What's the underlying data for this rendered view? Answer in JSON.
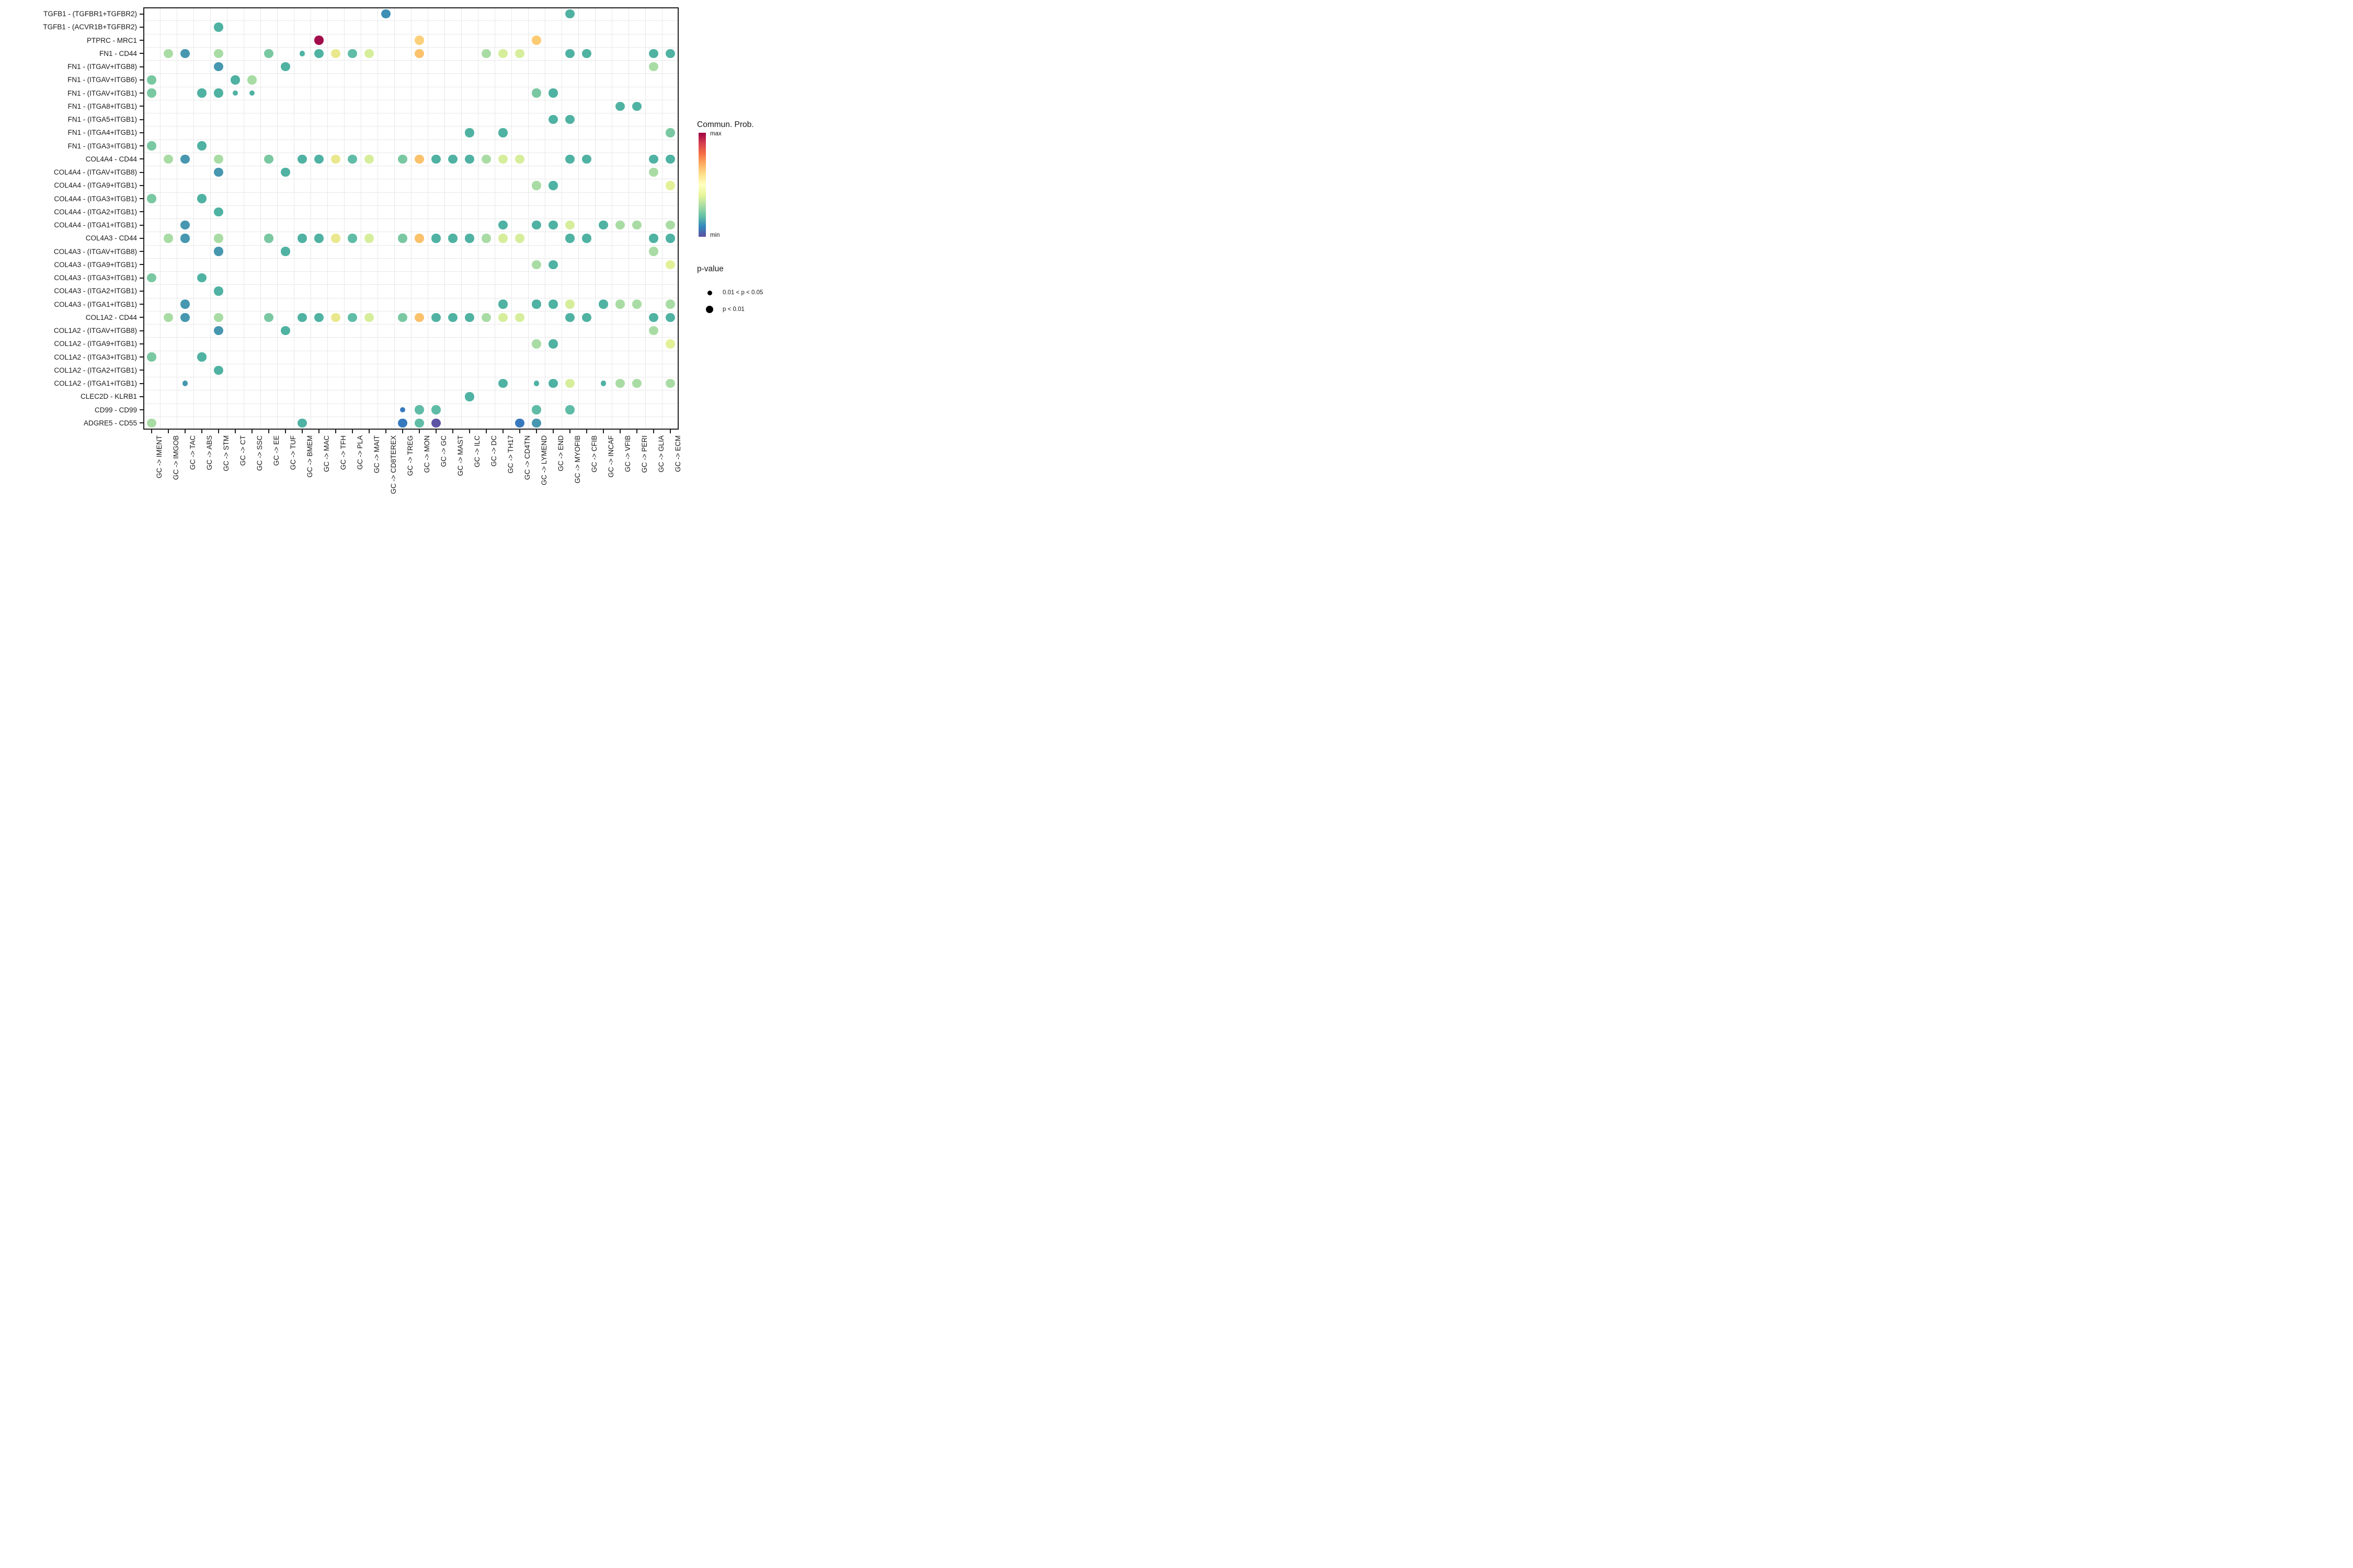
{
  "chart_data": {
    "type": "dotplot",
    "title": "",
    "x_categories": [
      "GC -> IMENT",
      "GC -> IMGOB",
      "GC -> TAC",
      "GC -> ABS",
      "GC -> STM",
      "GC -> CT",
      "GC -> SSC",
      "GC -> EE",
      "GC -> TUF",
      "GC -> BMEM",
      "GC -> MAC",
      "GC -> TFH",
      "GC -> PLA",
      "GC -> MAIT",
      "GC -> CD8TEREX",
      "GC -> TREG",
      "GC -> MON",
      "GC -> GC",
      "GC -> MAST",
      "GC -> ILC",
      "GC -> DC",
      "GC -> TH17",
      "GC -> CD4TN",
      "GC -> LYMEND",
      "GC -> END",
      "GC -> MYOFIB",
      "GC -> CFIB",
      "GC -> INCAF",
      "GC -> VFIB",
      "GC -> PERI",
      "GC -> GLIA",
      "GC -> ECM"
    ],
    "y_categories": [
      "TGFB1 - (TGFBR1+TGFBR2)",
      "TGFB1 - (ACVR1B+TGFBR2)",
      "PTPRC - MRC1",
      "FN1 - CD44",
      "FN1 - (ITGAV+ITGB8)",
      "FN1 - (ITGAV+ITGB6)",
      "FN1 - (ITGAV+ITGB1)",
      "FN1 - (ITGA8+ITGB1)",
      "FN1 - (ITGA5+ITGB1)",
      "FN1 - (ITGA4+ITGB1)",
      "FN1 - (ITGA3+ITGB1)",
      "COL4A4 - CD44",
      "COL4A4 - (ITGAV+ITGB8)",
      "COL4A4 - (ITGA9+ITGB1)",
      "COL4A4 - (ITGA3+ITGB1)",
      "COL4A4 - (ITGA2+ITGB1)",
      "COL4A4 - (ITGA1+ITGB1)",
      "COL4A3 - CD44",
      "COL4A3 - (ITGAV+ITGB8)",
      "COL4A3 - (ITGA9+ITGB1)",
      "COL4A3 - (ITGA3+ITGB1)",
      "COL4A3 - (ITGA2+ITGB1)",
      "COL4A3 - (ITGA1+ITGB1)",
      "COL1A2 - CD44",
      "COL1A2 - (ITGAV+ITGB8)",
      "COL1A2 - (ITGA9+ITGB1)",
      "COL1A2 - (ITGA3+ITGB1)",
      "COL1A2 - (ITGA2+ITGB1)",
      "COL1A2 - (ITGA1+ITGB1)",
      "CLEC2D - KLRB1",
      "CD99 - CD99",
      "ADGRE5 - CD55"
    ],
    "palette": {
      "t": "#4FB2A2",
      "tg": "#5FBCA7",
      "st": "#4697AF",
      "bl": "#3E8FB6",
      "bb": "#3879BE",
      "pu": "#5C53A5",
      "dr": "#A30C4A",
      "or": "#FBC16B",
      "lo": "#FBD07A",
      "lo2": "#FBCB72",
      "ye": "#EAE88E",
      "yg": "#D6EE9B",
      "pyg": "#E2F197",
      "lg": "#A9DCA4",
      "gr": "#7AC8A2"
    },
    "size_classes": {
      "large": "p < 0.01",
      "small": "0.01 < p < 0.05"
    },
    "dots": [
      [
        0,
        14,
        "bl"
      ],
      [
        0,
        25,
        "t"
      ],
      [
        1,
        4,
        "t"
      ],
      [
        2,
        10,
        "dr"
      ],
      [
        2,
        16,
        "lo"
      ],
      [
        2,
        23,
        "lo2"
      ],
      [
        3,
        1,
        "lg"
      ],
      [
        3,
        2,
        "st"
      ],
      [
        3,
        4,
        "lg"
      ],
      [
        3,
        7,
        "gr"
      ],
      [
        3,
        9,
        "t",
        1
      ],
      [
        3,
        10,
        "t"
      ],
      [
        3,
        11,
        "ye"
      ],
      [
        3,
        12,
        "tg"
      ],
      [
        3,
        13,
        "yg"
      ],
      [
        3,
        16,
        "or"
      ],
      [
        3,
        20,
        "lg"
      ],
      [
        3,
        21,
        "yg"
      ],
      [
        3,
        22,
        "yg"
      ],
      [
        3,
        25,
        "t"
      ],
      [
        3,
        26,
        "t"
      ],
      [
        3,
        30,
        "t"
      ],
      [
        3,
        31,
        "t"
      ],
      [
        4,
        4,
        "st"
      ],
      [
        4,
        8,
        "t"
      ],
      [
        4,
        30,
        "lg"
      ],
      [
        5,
        0,
        "gr"
      ],
      [
        5,
        5,
        "t"
      ],
      [
        5,
        6,
        "lg"
      ],
      [
        6,
        0,
        "gr"
      ],
      [
        6,
        3,
        "t"
      ],
      [
        6,
        4,
        "t"
      ],
      [
        6,
        5,
        "t",
        1
      ],
      [
        6,
        6,
        "t",
        1
      ],
      [
        6,
        23,
        "gr"
      ],
      [
        6,
        24,
        "t"
      ],
      [
        7,
        28,
        "t"
      ],
      [
        7,
        29,
        "t"
      ],
      [
        8,
        24,
        "t"
      ],
      [
        8,
        25,
        "t"
      ],
      [
        9,
        19,
        "t"
      ],
      [
        9,
        21,
        "t"
      ],
      [
        9,
        31,
        "gr"
      ],
      [
        10,
        0,
        "gr"
      ],
      [
        10,
        3,
        "t"
      ],
      [
        11,
        1,
        "lg"
      ],
      [
        11,
        2,
        "st"
      ],
      [
        11,
        4,
        "lg"
      ],
      [
        11,
        7,
        "gr"
      ],
      [
        11,
        9,
        "t"
      ],
      [
        11,
        10,
        "t"
      ],
      [
        11,
        11,
        "ye"
      ],
      [
        11,
        12,
        "tg"
      ],
      [
        11,
        13,
        "yg"
      ],
      [
        11,
        15,
        "gr"
      ],
      [
        11,
        16,
        "or"
      ],
      [
        11,
        17,
        "t"
      ],
      [
        11,
        18,
        "t"
      ],
      [
        11,
        19,
        "t"
      ],
      [
        11,
        20,
        "lg"
      ],
      [
        11,
        21,
        "yg"
      ],
      [
        11,
        22,
        "yg"
      ],
      [
        11,
        25,
        "t"
      ],
      [
        11,
        26,
        "t"
      ],
      [
        11,
        30,
        "t"
      ],
      [
        11,
        31,
        "t"
      ],
      [
        12,
        4,
        "st"
      ],
      [
        12,
        8,
        "t"
      ],
      [
        12,
        30,
        "lg"
      ],
      [
        13,
        23,
        "lg"
      ],
      [
        13,
        24,
        "t"
      ],
      [
        13,
        31,
        "pyg"
      ],
      [
        14,
        0,
        "gr"
      ],
      [
        14,
        3,
        "t"
      ],
      [
        15,
        4,
        "t"
      ],
      [
        16,
        2,
        "st"
      ],
      [
        16,
        21,
        "t"
      ],
      [
        16,
        23,
        "t"
      ],
      [
        16,
        24,
        "t"
      ],
      [
        16,
        25,
        "yg"
      ],
      [
        16,
        27,
        "t"
      ],
      [
        16,
        28,
        "lg"
      ],
      [
        16,
        29,
        "lg"
      ],
      [
        16,
        31,
        "lg"
      ],
      [
        17,
        1,
        "lg"
      ],
      [
        17,
        2,
        "st"
      ],
      [
        17,
        4,
        "lg"
      ],
      [
        17,
        7,
        "gr"
      ],
      [
        17,
        9,
        "t"
      ],
      [
        17,
        10,
        "t"
      ],
      [
        17,
        11,
        "ye"
      ],
      [
        17,
        12,
        "tg"
      ],
      [
        17,
        13,
        "yg"
      ],
      [
        17,
        15,
        "gr"
      ],
      [
        17,
        16,
        "or"
      ],
      [
        17,
        17,
        "t"
      ],
      [
        17,
        18,
        "t"
      ],
      [
        17,
        19,
        "t"
      ],
      [
        17,
        20,
        "lg"
      ],
      [
        17,
        21,
        "yg"
      ],
      [
        17,
        22,
        "yg"
      ],
      [
        17,
        25,
        "t"
      ],
      [
        17,
        26,
        "t"
      ],
      [
        17,
        30,
        "t"
      ],
      [
        17,
        31,
        "t"
      ],
      [
        18,
        4,
        "st"
      ],
      [
        18,
        8,
        "t"
      ],
      [
        18,
        30,
        "lg"
      ],
      [
        19,
        23,
        "lg"
      ],
      [
        19,
        24,
        "t"
      ],
      [
        19,
        31,
        "pyg"
      ],
      [
        20,
        0,
        "gr"
      ],
      [
        20,
        3,
        "t"
      ],
      [
        21,
        4,
        "t"
      ],
      [
        22,
        2,
        "st"
      ],
      [
        22,
        21,
        "t"
      ],
      [
        22,
        23,
        "t"
      ],
      [
        22,
        24,
        "t"
      ],
      [
        22,
        25,
        "yg"
      ],
      [
        22,
        27,
        "t"
      ],
      [
        22,
        28,
        "lg"
      ],
      [
        22,
        29,
        "lg"
      ],
      [
        22,
        31,
        "lg"
      ],
      [
        23,
        1,
        "lg"
      ],
      [
        23,
        2,
        "st"
      ],
      [
        23,
        4,
        "lg"
      ],
      [
        23,
        7,
        "gr"
      ],
      [
        23,
        9,
        "t"
      ],
      [
        23,
        10,
        "t"
      ],
      [
        23,
        11,
        "ye"
      ],
      [
        23,
        12,
        "tg"
      ],
      [
        23,
        13,
        "yg"
      ],
      [
        23,
        15,
        "gr"
      ],
      [
        23,
        16,
        "or"
      ],
      [
        23,
        17,
        "t"
      ],
      [
        23,
        18,
        "t"
      ],
      [
        23,
        19,
        "t"
      ],
      [
        23,
        20,
        "lg"
      ],
      [
        23,
        21,
        "yg"
      ],
      [
        23,
        22,
        "yg"
      ],
      [
        23,
        25,
        "t"
      ],
      [
        23,
        26,
        "t"
      ],
      [
        23,
        30,
        "t"
      ],
      [
        23,
        31,
        "t"
      ],
      [
        24,
        4,
        "st"
      ],
      [
        24,
        8,
        "t"
      ],
      [
        24,
        30,
        "lg"
      ],
      [
        25,
        23,
        "lg"
      ],
      [
        25,
        24,
        "t"
      ],
      [
        25,
        31,
        "pyg"
      ],
      [
        26,
        0,
        "gr"
      ],
      [
        26,
        3,
        "t"
      ],
      [
        27,
        4,
        "t"
      ],
      [
        28,
        2,
        "st",
        1
      ],
      [
        28,
        21,
        "t"
      ],
      [
        28,
        23,
        "t",
        1
      ],
      [
        28,
        24,
        "t"
      ],
      [
        28,
        25,
        "yg"
      ],
      [
        28,
        27,
        "t",
        1
      ],
      [
        28,
        28,
        "lg"
      ],
      [
        28,
        29,
        "lg"
      ],
      [
        28,
        31,
        "lg"
      ],
      [
        29,
        19,
        "t"
      ],
      [
        30,
        15,
        "bb",
        1
      ],
      [
        30,
        16,
        "tg"
      ],
      [
        30,
        17,
        "tg"
      ],
      [
        30,
        23,
        "tg"
      ],
      [
        30,
        25,
        "tg"
      ],
      [
        31,
        0,
        "lg"
      ],
      [
        31,
        9,
        "t"
      ],
      [
        31,
        15,
        "bb"
      ],
      [
        31,
        16,
        "tg"
      ],
      [
        31,
        17,
        "pu"
      ],
      [
        31,
        22,
        "bb"
      ],
      [
        31,
        23,
        "st"
      ]
    ],
    "color_legend": {
      "title": "Commun. Prob.",
      "max_label": "max",
      "min_label": "min",
      "gradient_top_to_bottom": [
        "#9E0142",
        "#D53E4F",
        "#F46D43",
        "#FDAE61",
        "#FEE08B",
        "#FFFFBF",
        "#E6F598",
        "#ABDDA4",
        "#66C2A5",
        "#3288BD",
        "#5E4FA2"
      ]
    },
    "size_legend": {
      "title": "p-value",
      "items": [
        {
          "label": "0.01 < p < 0.05",
          "size": "small"
        },
        {
          "label": "p < 0.01",
          "size": "large"
        }
      ]
    },
    "layout_hints": {
      "grid": true,
      "legend_position": "right",
      "x_labels_rotated_90": true
    }
  }
}
